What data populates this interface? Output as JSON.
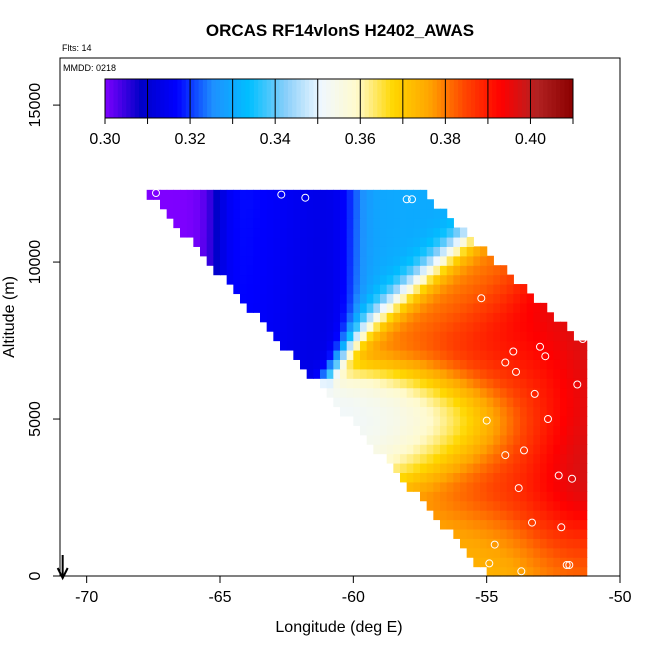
{
  "chart_data": {
    "type": "heatmap",
    "title": "ORCAS RF14vlonS H2402_AWAS",
    "subtitle_lines": [
      "Flts: 14",
      "MMDD: 0218"
    ],
    "xlabel": "Longitude (deg E)",
    "ylabel": "Altitude (m)",
    "xlim": [
      -71,
      -50
    ],
    "ylim": [
      0,
      16500
    ],
    "x_ticks": [
      -70,
      -65,
      -60,
      -55,
      -50
    ],
    "x_tick_labels": [
      "-70",
      "-65",
      "-60",
      "-55",
      "-50"
    ],
    "y_ticks": [
      0,
      5000,
      10000,
      15000
    ],
    "y_tick_labels": [
      "0",
      "5000",
      "10000",
      "15000"
    ],
    "colorbar": {
      "range": [
        0.3,
        0.41
      ],
      "ticks": [
        0.3,
        0.32,
        0.34,
        0.36,
        0.38,
        0.4
      ],
      "tick_labels": [
        "0.30",
        "0.32",
        "0.34",
        "0.36",
        "0.38",
        "0.40"
      ],
      "placement": "top inset",
      "colors": [
        "#7f00ff",
        "#0000c8",
        "#0000ff",
        "#1e90ff",
        "#00bfff",
        "#87cefa",
        "#f0f8ff",
        "#fffacd",
        "#ffd700",
        "#ffa500",
        "#ff4500",
        "#ff0000",
        "#b22222",
        "#8b0000"
      ]
    },
    "field_description": "Interpolated curtain of H2402_AWAS values vs longitude and altitude",
    "samples": [
      {
        "x": -67.4,
        "y": 12200,
        "v": 0.3
      },
      {
        "x": -62.7,
        "y": 12150,
        "v": 0.32
      },
      {
        "x": -61.8,
        "y": 12050,
        "v": 0.31
      },
      {
        "x": -58.0,
        "y": 12000,
        "v": 0.33
      },
      {
        "x": -57.8,
        "y": 12000,
        "v": 0.33
      },
      {
        "x": -55.2,
        "y": 8850,
        "v": 0.38
      },
      {
        "x": -54.0,
        "y": 7150,
        "v": 0.4
      },
      {
        "x": -54.3,
        "y": 6800,
        "v": 0.39
      },
      {
        "x": -53.9,
        "y": 6500,
        "v": 0.38
      },
      {
        "x": -53.0,
        "y": 7300,
        "v": 0.4
      },
      {
        "x": -52.8,
        "y": 7000,
        "v": 0.39
      },
      {
        "x": -51.4,
        "y": 7550,
        "v": 0.4
      },
      {
        "x": -51.6,
        "y": 6100,
        "v": 0.4
      },
      {
        "x": -53.2,
        "y": 5800,
        "v": 0.38
      },
      {
        "x": -52.7,
        "y": 5000,
        "v": 0.4
      },
      {
        "x": -55.0,
        "y": 4950,
        "v": 0.35
      },
      {
        "x": -53.6,
        "y": 4000,
        "v": 0.38
      },
      {
        "x": -54.3,
        "y": 3850,
        "v": 0.39
      },
      {
        "x": -52.3,
        "y": 3200,
        "v": 0.4
      },
      {
        "x": -51.8,
        "y": 3100,
        "v": 0.4
      },
      {
        "x": -53.8,
        "y": 2800,
        "v": 0.39
      },
      {
        "x": -53.3,
        "y": 1700,
        "v": 0.38
      },
      {
        "x": -52.2,
        "y": 1550,
        "v": 0.4
      },
      {
        "x": -54.7,
        "y": 1000,
        "v": 0.38
      },
      {
        "x": -54.9,
        "y": 400,
        "v": 0.37
      },
      {
        "x": -52.0,
        "y": 350,
        "v": 0.38
      },
      {
        "x": -51.9,
        "y": 350,
        "v": 0.38
      },
      {
        "x": -53.7,
        "y": 150,
        "v": 0.37
      }
    ],
    "annotations": [
      {
        "type": "arrow",
        "direction": "down",
        "x": -70.9
      }
    ]
  }
}
